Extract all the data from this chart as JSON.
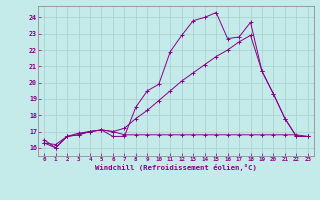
{
  "background_color": "#c5eaea",
  "grid_color": "#a8d0d0",
  "line_color": "#880088",
  "xlim": [
    -0.5,
    23.5
  ],
  "ylim": [
    15.5,
    24.7
  ],
  "xticks": [
    0,
    1,
    2,
    3,
    4,
    5,
    6,
    7,
    8,
    9,
    10,
    11,
    12,
    13,
    14,
    15,
    16,
    17,
    18,
    19,
    20,
    21,
    22,
    23
  ],
  "yticks": [
    16,
    17,
    18,
    19,
    20,
    21,
    22,
    23,
    24
  ],
  "xlabel": "Windchill (Refroidissement éolien,°C)",
  "line1_x": [
    0,
    1,
    2,
    3,
    4,
    5,
    6,
    7,
    8,
    9,
    10,
    11,
    12,
    13,
    14,
    15,
    16,
    17,
    18,
    19,
    20,
    21,
    22,
    23
  ],
  "line1_y": [
    16.3,
    16.0,
    16.7,
    16.9,
    17.0,
    17.1,
    16.7,
    16.7,
    18.5,
    19.5,
    19.9,
    21.9,
    22.9,
    23.8,
    24.0,
    24.3,
    22.7,
    22.8,
    23.7,
    20.7,
    19.3,
    17.8,
    16.7,
    16.7
  ],
  "line2_x": [
    0,
    1,
    2,
    3,
    4,
    5,
    6,
    7,
    8,
    9,
    10,
    11,
    12,
    13,
    14,
    15,
    16,
    17,
    18,
    19,
    20,
    21,
    22,
    23
  ],
  "line2_y": [
    16.3,
    16.2,
    16.7,
    16.8,
    17.0,
    17.1,
    17.0,
    17.2,
    17.8,
    18.3,
    18.9,
    19.5,
    20.1,
    20.6,
    21.1,
    21.6,
    22.0,
    22.5,
    22.9,
    20.7,
    19.3,
    17.8,
    16.7,
    16.7
  ],
  "line3_x": [
    0,
    1,
    2,
    3,
    4,
    5,
    6,
    7,
    8,
    9,
    10,
    11,
    12,
    13,
    14,
    15,
    16,
    17,
    18,
    19,
    20,
    21,
    22,
    23
  ],
  "line3_y": [
    16.5,
    16.0,
    16.7,
    16.8,
    17.0,
    17.1,
    17.0,
    16.8,
    16.8,
    16.8,
    16.8,
    16.8,
    16.8,
    16.8,
    16.8,
    16.8,
    16.8,
    16.8,
    16.8,
    16.8,
    16.8,
    16.8,
    16.8,
    16.7
  ]
}
